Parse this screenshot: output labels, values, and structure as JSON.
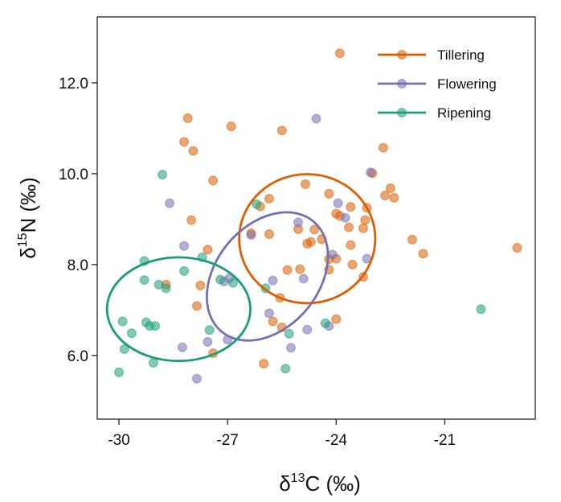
{
  "chart_data": {
    "type": "scatter",
    "title": "",
    "xlabel": {
      "base": "δ",
      "sup": "13",
      "rest": "C (‰)"
    },
    "ylabel": {
      "base": "δ",
      "sup": "15",
      "rest": "N (‰)"
    },
    "xlim": [
      -30.6,
      -18.5
    ],
    "ylim": [
      4.6,
      13.45
    ],
    "xticks": [
      -30,
      -27,
      -24,
      -21
    ],
    "xtick_labels": [
      "-30",
      "-27",
      "-24",
      "-21"
    ],
    "yticks": [
      6.0,
      8.0,
      10.0,
      12.0
    ],
    "ytick_labels": [
      "6.0",
      "8.0",
      "10.0",
      "12.0"
    ],
    "grid": false,
    "legend_position": "top-right",
    "series": [
      {
        "name": "Tillering",
        "color": "#D95F02",
        "ellipse": {
          "cx": -24.8,
          "cy": 8.57,
          "rx": 1.88,
          "ry": 1.42,
          "angle_deg": 0
        },
        "points": [
          [
            -23.9,
            12.65
          ],
          [
            -28.1,
            11.22
          ],
          [
            -26.9,
            11.04
          ],
          [
            -25.5,
            10.95
          ],
          [
            -28.2,
            10.7
          ],
          [
            -27.95,
            10.5
          ],
          [
            -27.4,
            9.85
          ],
          [
            -22.7,
            10.57
          ],
          [
            -23.0,
            10.01
          ],
          [
            -22.5,
            9.68
          ],
          [
            -22.4,
            9.47
          ],
          [
            -22.65,
            9.52
          ],
          [
            -23.6,
            9.27
          ],
          [
            -23.15,
            9.25
          ],
          [
            -24.2,
            9.56
          ],
          [
            -24.85,
            9.77
          ],
          [
            -25.85,
            9.45
          ],
          [
            -26.1,
            9.28
          ],
          [
            -24.0,
            9.12
          ],
          [
            -23.9,
            9.07
          ],
          [
            -23.2,
            8.98
          ],
          [
            -23.65,
            8.82
          ],
          [
            -23.25,
            8.8
          ],
          [
            -24.6,
            8.77
          ],
          [
            -25.05,
            8.78
          ],
          [
            -26.35,
            8.69
          ],
          [
            -25.85,
            8.67
          ],
          [
            -24.4,
            8.56
          ],
          [
            -24.7,
            8.5
          ],
          [
            -24.8,
            8.46
          ],
          [
            -23.6,
            8.43
          ],
          [
            -27.55,
            8.33
          ],
          [
            -24.2,
            8.12
          ],
          [
            -24.0,
            8.13
          ],
          [
            -25.35,
            7.88
          ],
          [
            -25.0,
            7.9
          ],
          [
            -24.2,
            7.89
          ],
          [
            -23.55,
            8.0
          ],
          [
            -23.25,
            7.73
          ],
          [
            -28.7,
            7.56
          ],
          [
            -27.75,
            7.54
          ],
          [
            -25.55,
            7.27
          ],
          [
            -27.85,
            7.09
          ],
          [
            -25.75,
            6.75
          ],
          [
            -25.5,
            6.62
          ],
          [
            -24.0,
            6.8
          ],
          [
            -27.4,
            6.05
          ],
          [
            -26.0,
            5.82
          ],
          [
            -21.9,
            8.55
          ],
          [
            -21.6,
            8.24
          ],
          [
            -28.0,
            8.98
          ],
          [
            -19.0,
            8.37
          ]
        ]
      },
      {
        "name": "Flowering",
        "color": "#7570B3",
        "ellipse": {
          "cx": -25.9,
          "cy": 7.74,
          "rx": 1.98,
          "ry": 1.13,
          "angle_deg": -50
        },
        "points": [
          [
            -24.55,
            11.21
          ],
          [
            -23.05,
            10.03
          ],
          [
            -28.6,
            9.35
          ],
          [
            -23.95,
            9.35
          ],
          [
            -23.75,
            9.03
          ],
          [
            -25.05,
            8.93
          ],
          [
            -26.35,
            8.65
          ],
          [
            -24.1,
            8.22
          ],
          [
            -28.2,
            8.41
          ],
          [
            -23.15,
            8.13
          ],
          [
            -25.75,
            7.65
          ],
          [
            -24.9,
            7.69
          ],
          [
            -27.1,
            7.63
          ],
          [
            -26.95,
            7.7
          ],
          [
            -25.85,
            6.93
          ],
          [
            -27.55,
            6.3
          ],
          [
            -24.8,
            6.57
          ],
          [
            -24.2,
            6.65
          ],
          [
            -25.25,
            6.17
          ],
          [
            -28.25,
            6.18
          ],
          [
            -27.85,
            5.49
          ],
          [
            -27.0,
            6.35
          ]
        ]
      },
      {
        "name": "Ripening",
        "color": "#1B9E77",
        "ellipse": {
          "cx": -28.35,
          "cy": 7.02,
          "rx": 1.98,
          "ry": 1.14,
          "angle_deg": 0
        },
        "points": [
          [
            -28.8,
            9.98
          ],
          [
            -26.2,
            9.33
          ],
          [
            -27.7,
            8.16
          ],
          [
            -29.3,
            8.08
          ],
          [
            -28.2,
            7.86
          ],
          [
            -29.3,
            7.66
          ],
          [
            -28.9,
            7.56
          ],
          [
            -28.7,
            7.48
          ],
          [
            -27.2,
            7.67
          ],
          [
            -26.85,
            7.6
          ],
          [
            -25.95,
            7.48
          ],
          [
            -29.9,
            6.75
          ],
          [
            -29.25,
            6.73
          ],
          [
            -29.15,
            6.65
          ],
          [
            -29.0,
            6.65
          ],
          [
            -29.65,
            6.49
          ],
          [
            -27.5,
            6.56
          ],
          [
            -25.3,
            6.48
          ],
          [
            -24.3,
            6.71
          ],
          [
            -29.85,
            6.14
          ],
          [
            -29.05,
            5.84
          ],
          [
            -25.4,
            5.71
          ],
          [
            -30.0,
            5.63
          ],
          [
            -20.0,
            7.02
          ]
        ]
      }
    ]
  }
}
